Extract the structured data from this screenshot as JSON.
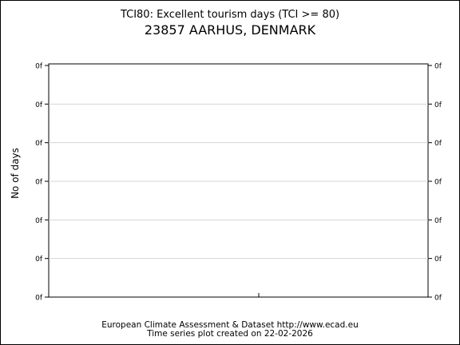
{
  "chart_data": {
    "type": "line",
    "title": "TCI80: Excellent tourism days (TCI >= 80)",
    "subtitle": "23857 AARHUS, DENMARK",
    "ylabel": "No of days",
    "xlabel": "",
    "y_tick_labels": [
      "0f",
      "0f",
      "0f",
      "0f",
      "0f",
      "0f",
      "0f"
    ],
    "grid": true,
    "series": [],
    "footer": {
      "line1": "European Climate Assessment & Dataset  http://www.ecad.eu",
      "line2": "Time series plot created on 22-02-2026"
    }
  }
}
